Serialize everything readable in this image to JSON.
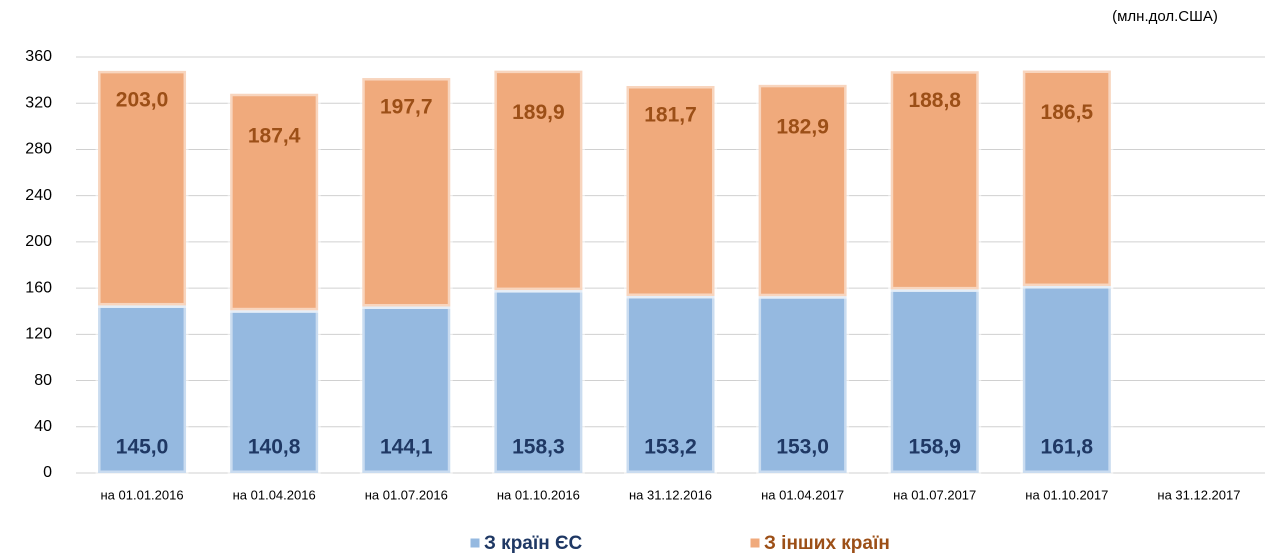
{
  "chart_data": {
    "type": "stacked_bar",
    "unit_label": "(млн.дол.США)",
    "categories": [
      "на 01.01.2016",
      "на 01.04.2016",
      "на 01.07.2016",
      "на 01.10.2016",
      "на 31.12.2016",
      "на 01.04.2017",
      "на 01.07.2017",
      "на 01.10.2017",
      "на 31.12.2017"
    ],
    "series": [
      {
        "name": "З країн ЄС",
        "color": "#95b9e0",
        "label_color": "#1f3864",
        "values": [
          145.0,
          140.8,
          144.1,
          158.3,
          153.2,
          153.0,
          158.9,
          161.8,
          null
        ],
        "value_labels": [
          "145,0",
          "140,8",
          "144,1",
          "158,3",
          "153,2",
          "153,0",
          "158,9",
          "161,8",
          null
        ]
      },
      {
        "name": "З інших країн",
        "color": "#f0aa7c",
        "label_color": "#9c4f17",
        "values": [
          203.0,
          187.4,
          197.7,
          189.9,
          181.7,
          182.9,
          188.8,
          186.5,
          null
        ],
        "value_labels": [
          "203,0",
          "187,4",
          "197,7",
          "189,9",
          "181,7",
          "182,9",
          "188,8",
          "186,5",
          null
        ]
      }
    ],
    "ylim": [
      0,
      360
    ],
    "yticks": [
      0,
      40,
      80,
      120,
      160,
      200,
      240,
      280,
      320,
      360
    ],
    "grid": true
  }
}
